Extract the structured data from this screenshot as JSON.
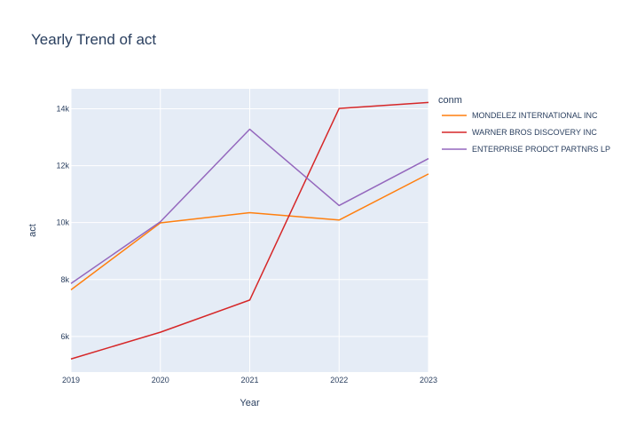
{
  "chart_data": {
    "type": "line",
    "title": "Yearly Trend of act",
    "xlabel": "Year",
    "ylabel": "act",
    "legend_title": "conm",
    "legend_position": "top-right",
    "grid": true,
    "x": [
      2019,
      2020,
      2021,
      2022,
      2023
    ],
    "x_ticks": [
      "2019",
      "2020",
      "2021",
      "2022",
      "2023"
    ],
    "xlim": [
      2019,
      2023
    ],
    "y_ticks": [
      6000,
      8000,
      10000,
      12000,
      14000
    ],
    "y_tick_labels": [
      "6k",
      "8k",
      "10k",
      "12k",
      "14k"
    ],
    "ylim": [
      4750,
      14700
    ],
    "series": [
      {
        "name": "MONDELEZ INTERNATIONAL INC",
        "color": "#ff7f0e",
        "values": [
          7640,
          9990,
          10350,
          10090,
          11710
        ]
      },
      {
        "name": "WARNER BROS DISCOVERY INC",
        "color": "#d62728",
        "values": [
          5210,
          6150,
          7280,
          14010,
          14220
        ]
      },
      {
        "name": "ENTERPRISE PRODCT PARTNRS LP",
        "color": "#9467bd",
        "values": [
          7860,
          10030,
          13280,
          10600,
          12250
        ]
      }
    ]
  }
}
